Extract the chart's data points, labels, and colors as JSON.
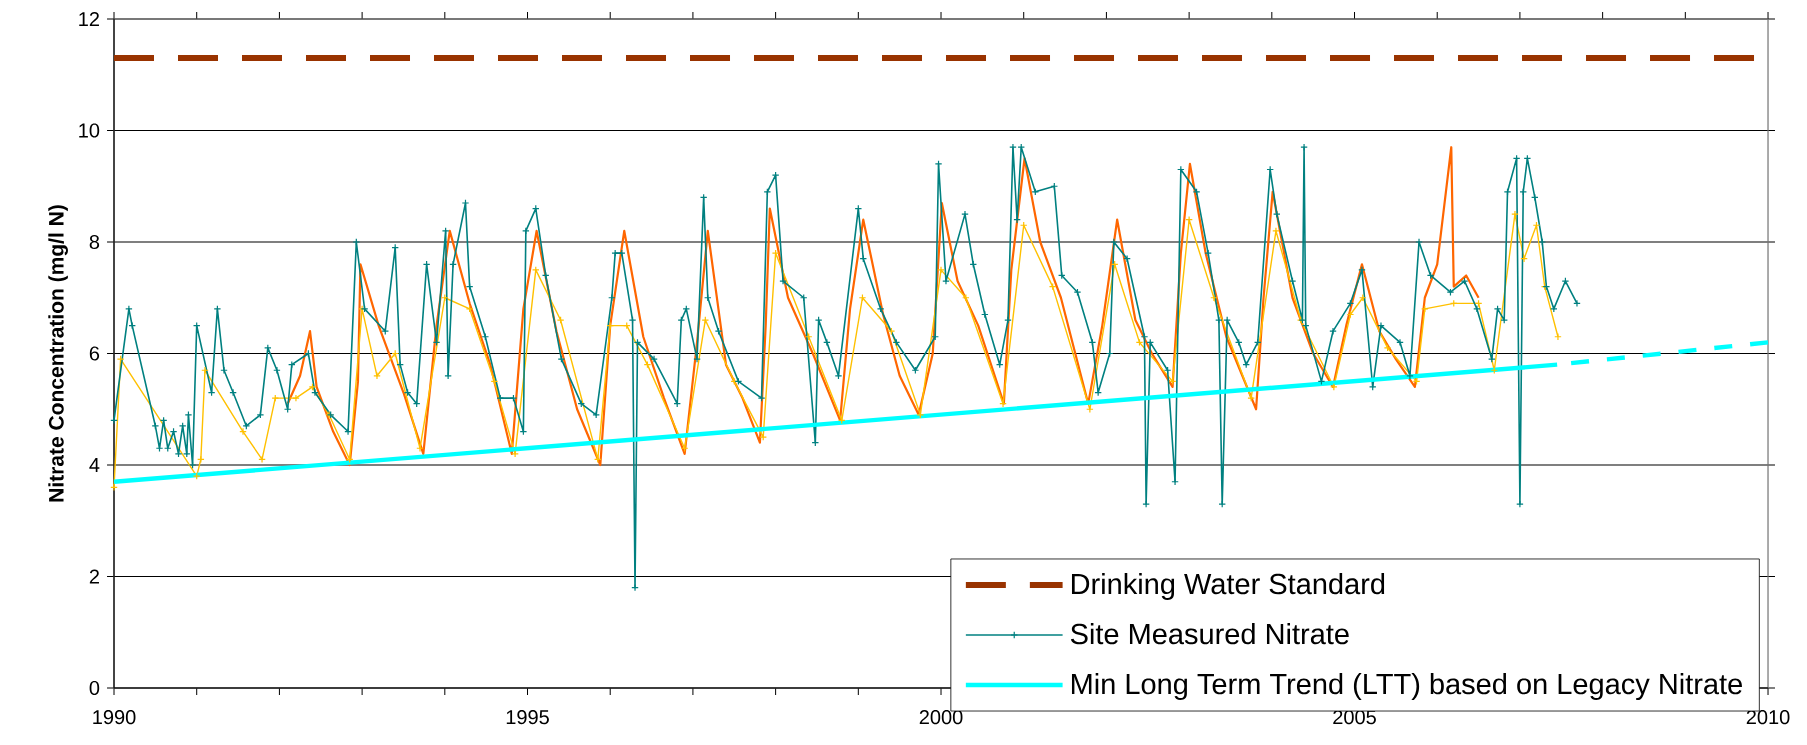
{
  "chart_data": {
    "type": "line",
    "ylabel": "Nitrate Concentration (mg/l N)",
    "xlim": [
      1990,
      2010
    ],
    "ylim": [
      0,
      12
    ],
    "xticks": [
      1990,
      {
        "value": 1991,
        "label": null
      },
      {
        "value": 1992,
        "label": null
      },
      {
        "value": 1993,
        "label": null
      },
      {
        "value": 1994,
        "label": null
      },
      1995,
      {
        "value": 1996,
        "label": null
      },
      {
        "value": 1997,
        "label": null
      },
      {
        "value": 1998,
        "label": null
      },
      {
        "value": 1999,
        "label": null
      },
      2000,
      {
        "value": 2001,
        "label": null
      },
      {
        "value": 2002,
        "label": null
      },
      {
        "value": 2003,
        "label": null
      },
      {
        "value": 2004,
        "label": null
      },
      2005,
      {
        "value": 2006,
        "label": null
      },
      {
        "value": 2007,
        "label": null
      },
      {
        "value": 2008,
        "label": null
      },
      {
        "value": 2009,
        "label": null
      },
      2010
    ],
    "yticks": [
      0,
      2,
      4,
      6,
      8,
      10,
      12
    ],
    "grid": "y",
    "legend": "bottom right",
    "ref_lines": [
      {
        "axis": "y",
        "value": 11.3,
        "label": "Drinking Water Standard",
        "color": "#993300",
        "line_style": "dashed"
      }
    ],
    "series": [
      {
        "color": "#ff6600",
        "marker": "none",
        "line_style": "solid",
        "x": [
          1992.1,
          1992.25,
          1992.37,
          1992.45,
          1992.65,
          1992.85,
          1992.95,
          1992.98,
          1993.2,
          1993.5,
          1993.74,
          1993.9,
          1994.06,
          1994.3,
          1994.55,
          1994.81,
          1994.95,
          1995.11,
          1995.35,
          1995.6,
          1995.88,
          1996.0,
          1996.17,
          1996.4,
          1996.65,
          1996.9,
          1997.05,
          1997.18,
          1997.4,
          1997.6,
          1997.81,
          1997.88,
          1997.93,
          1998.15,
          1998.45,
          1998.78,
          1998.9,
          1999.06,
          1999.3,
          1999.5,
          1999.73,
          1999.9,
          2000.01,
          2000.2,
          2000.45,
          2000.76,
          2000.85,
          2001.01,
          2001.2,
          2001.45,
          2001.78,
          2001.95,
          2002.13,
          2002.35,
          2002.55,
          2002.8,
          2002.9,
          2003.01,
          2003.2,
          2003.45,
          2003.81,
          2003.9,
          2004.01,
          2004.25,
          2004.5,
          2004.74,
          2004.9,
          2005.09,
          2005.3,
          2005.5,
          2005.73,
          2005.85,
          2006.0,
          2006.17,
          2006.2,
          2006.35,
          2006.5
        ],
        "values": [
          5.1,
          5.6,
          6.4,
          5.4,
          4.6,
          4.0,
          5.5,
          7.6,
          6.5,
          5.3,
          4.2,
          6.5,
          8.2,
          6.9,
          5.8,
          4.2,
          6.8,
          8.2,
          6.4,
          5.0,
          4.0,
          6.5,
          8.2,
          6.3,
          5.2,
          4.2,
          6.2,
          8.2,
          5.8,
          5.2,
          4.4,
          6.5,
          8.6,
          7.0,
          6.0,
          4.8,
          6.8,
          8.4,
          6.7,
          5.6,
          4.9,
          6.0,
          8.7,
          7.3,
          6.5,
          5.1,
          7.5,
          9.5,
          8.0,
          7.0,
          5.1,
          6.5,
          8.4,
          6.6,
          6.0,
          5.4,
          7.8,
          9.4,
          7.8,
          6.3,
          5.0,
          7.0,
          8.9,
          7.0,
          6.0,
          5.4,
          6.5,
          7.6,
          6.4,
          5.9,
          5.4,
          7.0,
          7.6,
          9.7,
          7.2,
          7.4,
          7.0
        ]
      },
      {
        "color": "#ffc000",
        "marker": "cross",
        "line_style": "solid",
        "x": [
          1990.0,
          1990.08,
          1991.0,
          1991.05,
          1991.1,
          1991.56,
          1991.79,
          1991.95,
          1992.2,
          1992.4,
          1992.6,
          1992.85,
          1993.0,
          1993.18,
          1993.4,
          1993.7,
          1994.0,
          1994.3,
          1994.6,
          1994.85,
          1995.1,
          1995.4,
          1995.85,
          1996.0,
          1996.2,
          1996.45,
          1996.9,
          1997.15,
          1997.5,
          1997.85,
          1998.0,
          1998.4,
          1998.8,
          1999.05,
          1999.4,
          1999.75,
          2000.0,
          2000.3,
          2000.75,
          2001.0,
          2001.35,
          2001.8,
          2002.1,
          2002.4,
          2002.8,
          2003.0,
          2003.3,
          2003.75,
          2004.05,
          2004.35,
          2004.75,
          2004.95,
          2005.1,
          2005.4,
          2005.75,
          2005.85,
          2006.2,
          2006.5,
          2006.69,
          2006.94,
          2007.05,
          2007.2,
          2007.3,
          2007.46
        ],
        "values": [
          3.6,
          5.9,
          3.8,
          4.1,
          5.7,
          4.6,
          4.1,
          5.2,
          5.2,
          5.4,
          4.9,
          4.1,
          6.8,
          5.6,
          6.0,
          4.3,
          7.0,
          6.8,
          5.5,
          4.2,
          7.5,
          6.6,
          4.1,
          6.5,
          6.5,
          5.8,
          4.3,
          6.6,
          5.5,
          4.5,
          7.8,
          6.3,
          4.8,
          7.0,
          6.4,
          4.9,
          7.5,
          7.0,
          5.1,
          8.3,
          7.2,
          5.0,
          7.6,
          6.2,
          5.5,
          8.4,
          7.0,
          5.2,
          8.2,
          6.6,
          5.4,
          6.7,
          7.0,
          6.1,
          5.5,
          6.8,
          6.9,
          6.9,
          5.7,
          8.5,
          7.7,
          8.3,
          7.2,
          6.3
        ]
      },
      {
        "name": "Site Measured Nitrate",
        "color": "#008080",
        "marker": "cross",
        "line_style": "solid",
        "x": [
          1990.0,
          1990.18,
          1990.22,
          1990.5,
          1990.55,
          1990.6,
          1990.65,
          1990.72,
          1990.78,
          1990.83,
          1990.88,
          1990.9,
          1990.95,
          1991.0,
          1991.18,
          1991.25,
          1991.33,
          1991.44,
          1991.6,
          1991.77,
          1991.86,
          1991.97,
          1992.1,
          1992.15,
          1992.35,
          1992.43,
          1992.62,
          1992.83,
          1992.93,
          1993.03,
          1993.28,
          1993.4,
          1993.46,
          1993.55,
          1993.66,
          1993.78,
          1993.9,
          1994.01,
          1994.04,
          1994.1,
          1994.25,
          1994.3,
          1994.49,
          1994.67,
          1994.83,
          1994.95,
          1994.98,
          1995.1,
          1995.22,
          1995.41,
          1995.65,
          1995.83,
          1996.02,
          1996.06,
          1996.14,
          1996.27,
          1996.3,
          1996.33,
          1996.53,
          1996.81,
          1996.86,
          1996.92,
          1997.05,
          1997.13,
          1997.18,
          1997.31,
          1997.55,
          1997.83,
          1997.9,
          1998.0,
          1998.09,
          1998.34,
          1998.48,
          1998.52,
          1998.62,
          1998.76,
          1999.0,
          1999.06,
          1999.27,
          1999.46,
          1999.69,
          1999.93,
          1999.97,
          2000.06,
          2000.29,
          2000.39,
          2000.53,
          2000.71,
          2000.81,
          2000.87,
          2000.92,
          2000.97,
          2001.14,
          2001.37,
          2001.46,
          2001.65,
          2001.83,
          2001.9,
          2002.04,
          2002.09,
          2002.25,
          2002.46,
          2002.48,
          2002.53,
          2002.74,
          2002.83,
          2002.9,
          2003.09,
          2003.23,
          2003.36,
          2003.4,
          2003.46,
          2003.6,
          2003.69,
          2003.83,
          2003.98,
          2004.06,
          2004.25,
          2004.37,
          2004.39,
          2004.41,
          2004.6,
          2004.74,
          2004.95,
          2005.09,
          2005.22,
          2005.32,
          2005.55,
          2005.67,
          2005.78,
          2005.92,
          2006.16,
          2006.33,
          2006.48,
          2006.66,
          2006.73,
          2006.81,
          2006.85,
          2006.96,
          2007.0,
          2007.04,
          2007.09,
          2007.18,
          2007.27,
          2007.32,
          2007.41,
          2007.55,
          2007.69
        ],
        "values": [
          4.8,
          6.8,
          6.5,
          4.7,
          4.3,
          4.8,
          4.3,
          4.6,
          4.2,
          4.7,
          4.2,
          4.9,
          4.0,
          6.5,
          5.3,
          6.8,
          5.7,
          5.3,
          4.7,
          4.9,
          6.1,
          5.7,
          5.0,
          5.8,
          6.0,
          5.3,
          4.9,
          4.6,
          8.0,
          6.8,
          6.4,
          7.9,
          5.8,
          5.3,
          5.1,
          7.6,
          6.2,
          8.2,
          5.6,
          7.6,
          8.7,
          7.2,
          6.3,
          5.2,
          5.2,
          4.6,
          8.2,
          8.6,
          7.4,
          5.9,
          5.1,
          4.9,
          7.0,
          7.8,
          7.8,
          6.6,
          1.8,
          6.2,
          5.9,
          5.1,
          6.6,
          6.8,
          5.9,
          8.8,
          7.0,
          6.4,
          5.5,
          5.2,
          8.9,
          9.2,
          7.3,
          7.0,
          4.4,
          6.6,
          6.2,
          5.6,
          8.6,
          7.7,
          6.8,
          6.2,
          5.7,
          6.3,
          9.4,
          7.3,
          8.5,
          7.6,
          6.7,
          5.8,
          6.6,
          9.7,
          8.4,
          9.7,
          8.9,
          9.0,
          7.4,
          7.1,
          6.2,
          5.3,
          6.0,
          8.0,
          7.7,
          6.3,
          3.3,
          6.2,
          5.7,
          3.7,
          9.3,
          8.9,
          7.8,
          6.6,
          3.3,
          6.6,
          6.2,
          5.8,
          6.2,
          9.3,
          8.5,
          7.3,
          6.6,
          9.7,
          6.5,
          5.5,
          6.4,
          6.9,
          7.5,
          5.4,
          6.5,
          6.2,
          5.6,
          8.0,
          7.4,
          7.1,
          7.3,
          6.8,
          5.9,
          6.8,
          6.6,
          8.9,
          9.5,
          3.3,
          8.9,
          9.5,
          8.8,
          8.0,
          7.2,
          6.8,
          7.3,
          6.9
        ]
      },
      {
        "name": "Min Long Term Trend (LTT) based on Legacy Nitrate",
        "color": "#00ffff",
        "marker": "none",
        "line_style": "solid",
        "x": [
          1990,
          2007.45
        ],
        "values": [
          3.7,
          5.8
        ]
      },
      {
        "color": "#00ffff",
        "marker": "none",
        "line_style": "dashed",
        "x": [
          2007.45,
          2010
        ],
        "values": [
          5.8,
          6.2
        ]
      }
    ]
  }
}
